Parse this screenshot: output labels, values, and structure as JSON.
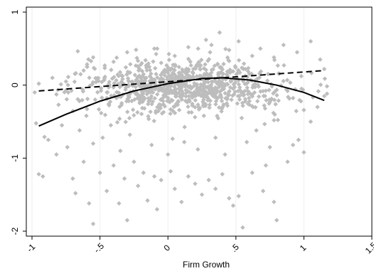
{
  "chart_data": {
    "type": "scatter",
    "title": "",
    "xlabel": "Firm Growth",
    "ylabel": "",
    "xlim": [
      -1.0,
      1.5
    ],
    "ylim": [
      -2.0,
      1.0
    ],
    "x_ticks": [
      -1,
      -0.5,
      0,
      0.5,
      1,
      1.5
    ],
    "x_tick_labels": [
      "-1",
      "-.5",
      "0",
      ".5",
      "1",
      "1.5"
    ],
    "y_ticks": [
      -2,
      -1,
      0,
      1
    ],
    "y_tick_labels": [
      "-2",
      "-1",
      "0",
      "1"
    ],
    "grid": "vertical lines at x ticks",
    "legend": "none",
    "colors": {
      "points": "#bdbdbd",
      "fit_lines": "#000000",
      "grid": "#eeeeee"
    },
    "series": [
      {
        "kind": "scatter",
        "marker": "diamond",
        "points": [
          [
            -0.95,
            -1.22
          ],
          [
            -0.92,
            -1.25
          ],
          [
            -0.88,
            -0.75
          ],
          [
            -0.82,
            -0.95
          ],
          [
            -0.78,
            -0.55
          ],
          [
            -0.74,
            -0.85
          ],
          [
            -0.7,
            -1.28
          ],
          [
            -0.68,
            -1.48
          ],
          [
            -0.62,
            -1.05
          ],
          [
            -0.58,
            -1.62
          ],
          [
            -0.55,
            -1.9
          ],
          [
            -0.5,
            -1.2
          ],
          [
            -0.48,
            -0.72
          ],
          [
            -0.45,
            -1.45
          ],
          [
            -0.4,
            -1.1
          ],
          [
            -0.36,
            -1.62
          ],
          [
            -0.32,
            -1.28
          ],
          [
            -0.3,
            -1.85
          ],
          [
            -0.25,
            -1.05
          ],
          [
            -0.22,
            -1.38
          ],
          [
            -0.18,
            -1.2
          ],
          [
            -0.15,
            -1.58
          ],
          [
            -0.1,
            -1.25
          ],
          [
            -0.08,
            -1.7
          ],
          [
            -0.05,
            -1.3
          ],
          [
            0.02,
            -1.18
          ],
          [
            0.05,
            -1.42
          ],
          [
            0.1,
            -1.6
          ],
          [
            0.15,
            -1.25
          ],
          [
            0.2,
            -1.35
          ],
          [
            0.25,
            -1.5
          ],
          [
            0.3,
            -1.3
          ],
          [
            0.35,
            -1.42
          ],
          [
            0.4,
            -1.22
          ],
          [
            0.45,
            -1.55
          ],
          [
            0.48,
            -1.65
          ],
          [
            0.52,
            -1.52
          ],
          [
            0.55,
            -1.95
          ],
          [
            0.62,
            -1.2
          ],
          [
            0.7,
            -1.45
          ],
          [
            0.72,
            -1.1
          ],
          [
            0.78,
            -1.6
          ],
          [
            0.8,
            -1.85
          ],
          [
            0.88,
            -1.05
          ],
          [
            0.92,
            -0.82
          ],
          [
            0.96,
            -0.75
          ],
          [
            1.0,
            -0.92
          ],
          [
            1.05,
            -0.5
          ],
          [
            1.1,
            -0.3
          ],
          [
            1.15,
            -0.15
          ],
          [
            -0.65,
            -0.62
          ],
          [
            -0.6,
            -0.42
          ],
          [
            -0.55,
            -0.8
          ],
          [
            -0.42,
            -0.55
          ],
          [
            -0.35,
            -0.9
          ],
          [
            -0.28,
            -0.68
          ],
          [
            -0.12,
            -0.82
          ],
          [
            0.0,
            -0.95
          ],
          [
            0.12,
            -0.78
          ],
          [
            0.22,
            -0.88
          ],
          [
            0.35,
            -0.72
          ],
          [
            0.42,
            -0.95
          ],
          [
            0.58,
            -0.78
          ],
          [
            0.65,
            -0.62
          ],
          [
            0.75,
            -0.85
          ],
          [
            -0.85,
            0.1
          ],
          [
            -0.75,
            0.05
          ],
          [
            -0.62,
            0.2
          ],
          [
            -0.55,
            0.38
          ],
          [
            -0.4,
            0.32
          ],
          [
            -0.3,
            0.45
          ],
          [
            -0.2,
            0.28
          ],
          [
            -0.1,
            0.5
          ],
          [
            0.05,
            0.4
          ],
          [
            0.15,
            0.52
          ],
          [
            0.28,
            0.62
          ],
          [
            0.32,
            0.55
          ],
          [
            0.38,
            0.72
          ],
          [
            0.45,
            0.48
          ],
          [
            0.52,
            0.6
          ],
          [
            0.62,
            0.4
          ],
          [
            0.68,
            0.5
          ],
          [
            0.78,
            0.38
          ],
          [
            0.85,
            0.55
          ],
          [
            0.95,
            0.45
          ],
          [
            1.05,
            0.6
          ],
          [
            1.12,
            0.35
          ],
          [
            1.15,
            0.22
          ],
          [
            -0.95,
            0.02
          ],
          [
            -0.98,
            -0.1
          ]
        ]
      },
      {
        "kind": "line",
        "style": "dashed",
        "x": [
          -0.95,
          1.15
        ],
        "y": [
          -0.08,
          0.2
        ]
      },
      {
        "kind": "line",
        "style": "solid",
        "x": [
          -0.95,
          -0.75,
          -0.5,
          -0.25,
          0.0,
          0.25,
          0.4,
          0.6,
          0.8,
          1.0,
          1.15
        ],
        "y": [
          -0.56,
          -0.4,
          -0.22,
          -0.08,
          0.02,
          0.09,
          0.1,
          0.07,
          0.0,
          -0.1,
          -0.21
        ]
      }
    ]
  }
}
